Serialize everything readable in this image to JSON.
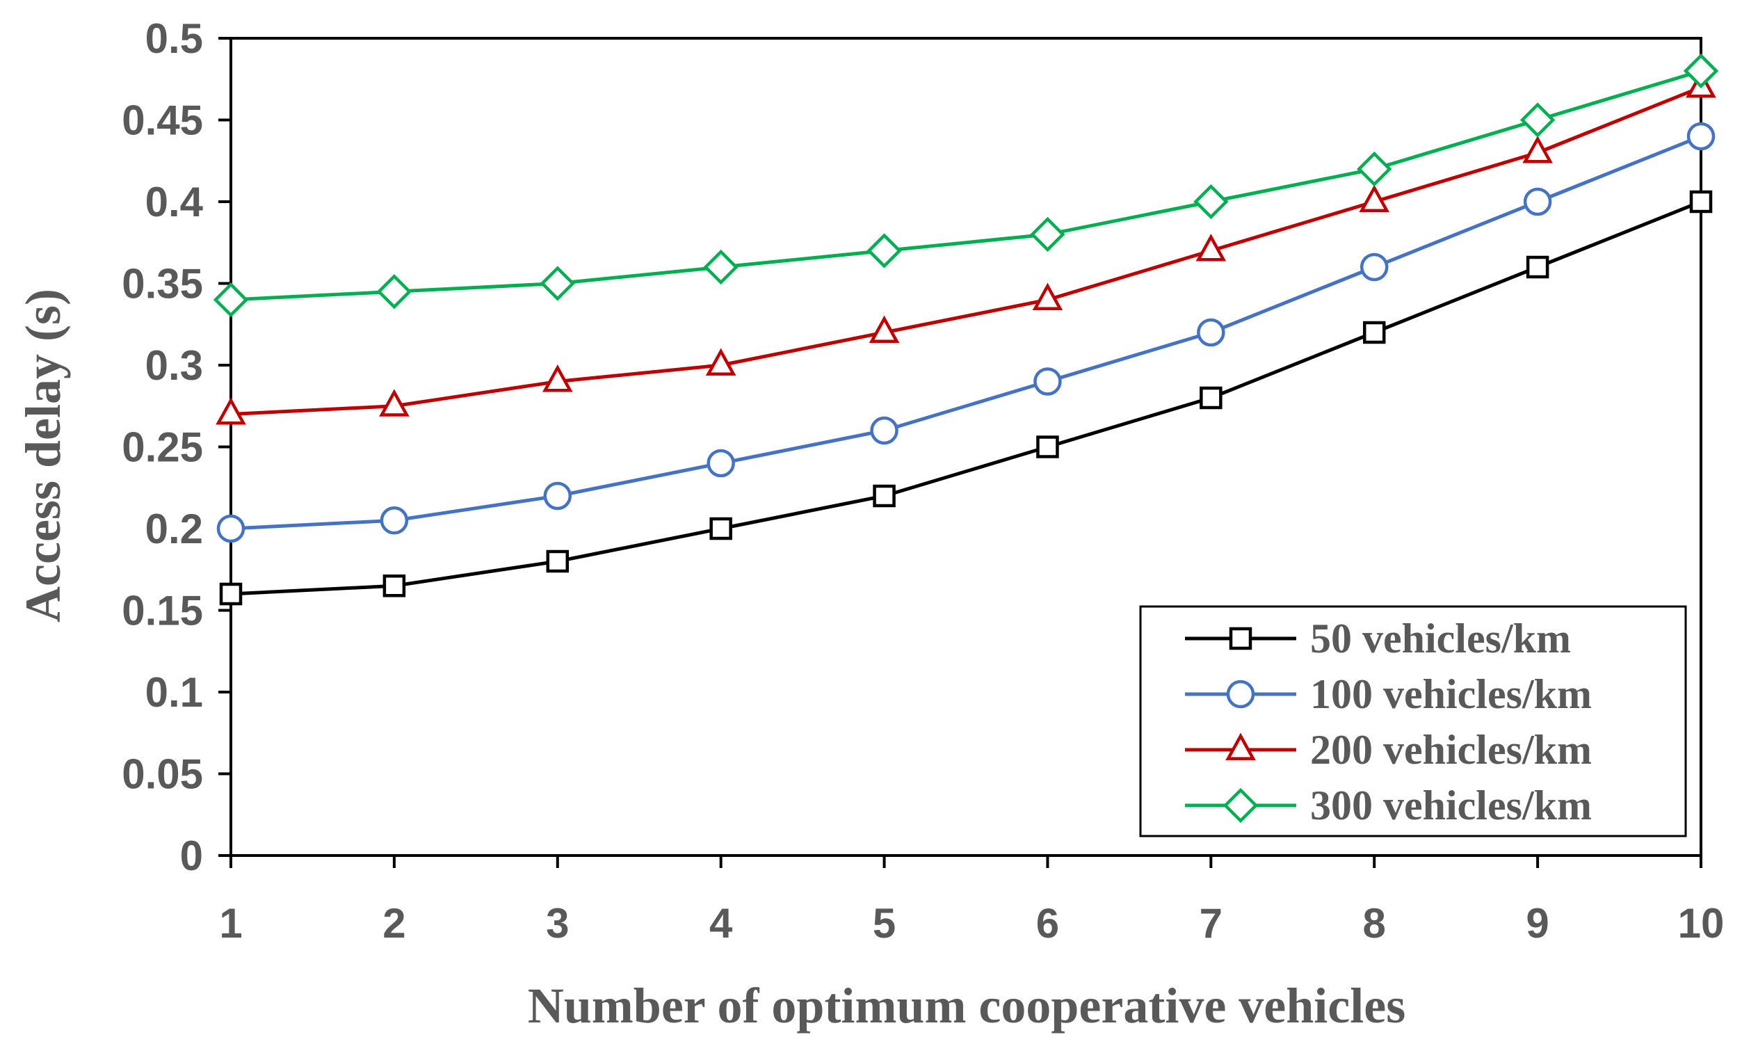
{
  "chart_data": {
    "type": "line",
    "title": "",
    "xlabel": "Number of optimum cooperative vehicles",
    "ylabel": "Access delay (s)",
    "x": [
      1,
      2,
      3,
      4,
      5,
      6,
      7,
      8,
      9,
      10
    ],
    "x_tick_labels": [
      "1",
      "2",
      "3",
      "4",
      "5",
      "6",
      "7",
      "8",
      "9",
      "10"
    ],
    "xlim": [
      1,
      10
    ],
    "ylim": [
      0,
      0.5
    ],
    "y_ticks": [
      0,
      0.05,
      0.1,
      0.15,
      0.2,
      0.25,
      0.3,
      0.35,
      0.4,
      0.45,
      0.5
    ],
    "y_tick_labels": [
      "0",
      "0.05",
      "0.1",
      "0.15",
      "0.2",
      "0.25",
      "0.3",
      "0.35",
      "0.4",
      "0.45",
      "0.5"
    ],
    "grid": false,
    "legend_position": "bottom-right",
    "series": [
      {
        "name": "50 vehicles/km",
        "color": "#000000",
        "marker": "square",
        "values": [
          0.16,
          0.165,
          0.18,
          0.2,
          0.22,
          0.25,
          0.28,
          0.32,
          0.36,
          0.4
        ]
      },
      {
        "name": "100 vehicles/km",
        "color": "#4472C4",
        "marker": "circle",
        "values": [
          0.2,
          0.205,
          0.22,
          0.24,
          0.26,
          0.29,
          0.32,
          0.36,
          0.4,
          0.44
        ]
      },
      {
        "name": "200 vehicles/km",
        "color": "#C00000",
        "marker": "triangle",
        "values": [
          0.27,
          0.275,
          0.29,
          0.3,
          0.32,
          0.34,
          0.37,
          0.4,
          0.43,
          0.47
        ]
      },
      {
        "name": "300 vehicles/km",
        "color": "#00B050",
        "marker": "diamond",
        "values": [
          0.34,
          0.345,
          0.35,
          0.36,
          0.37,
          0.38,
          0.4,
          0.42,
          0.45,
          0.48
        ]
      }
    ]
  }
}
